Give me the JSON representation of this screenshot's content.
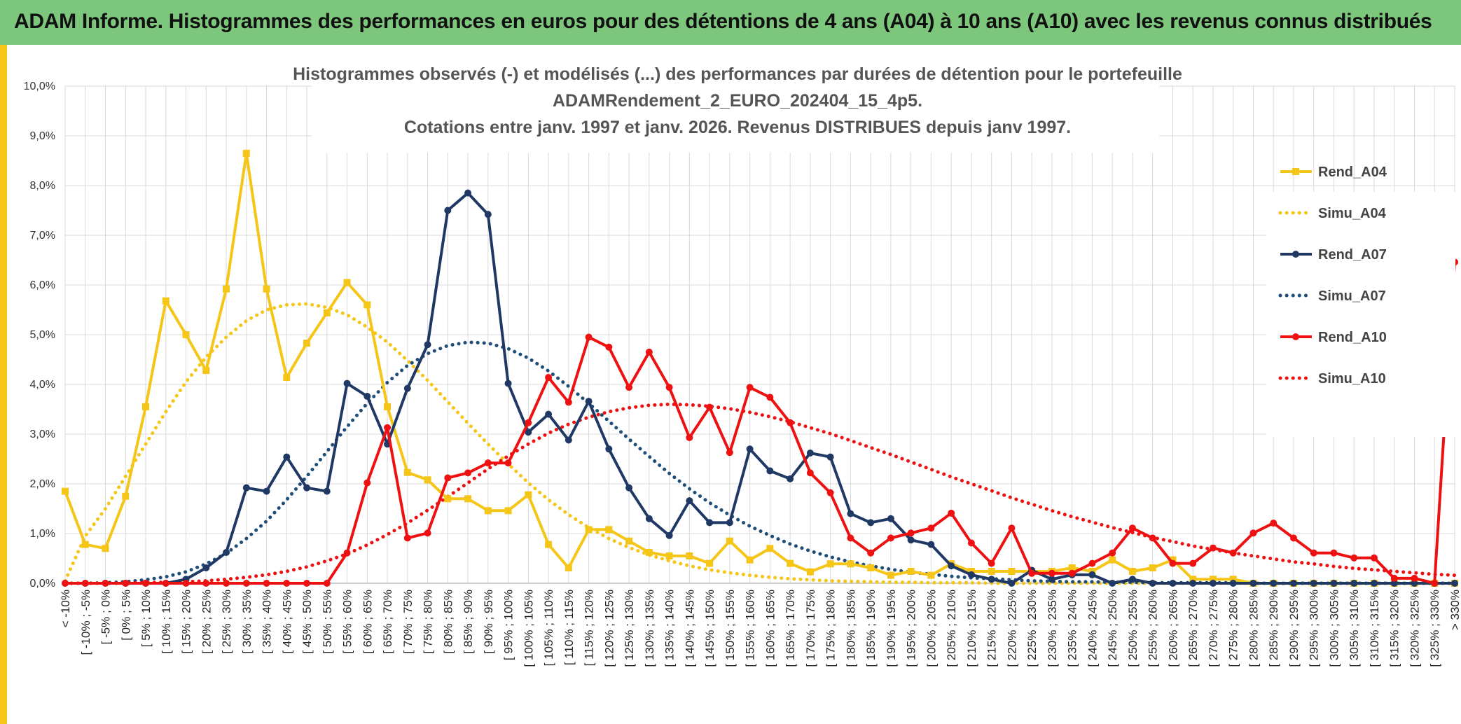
{
  "banner": {
    "title": "ADAM Informe. Histogrammes des performances en euros pour des détentions de 4 ans (A04) à 10 ans (A10) avec les revenus connus distribués",
    "color": "#7dc77d"
  },
  "chart_data": {
    "type": "line",
    "title": [
      "Histogrammes observés (-) et modélisés (...) des performances  par durées de détention pour le portefeuille",
      "ADAMRendement_2_EURO_202404_15_4p5.",
      "Cotations entre janv. 1997 et janv. 2026. Revenus DISTRIBUES depuis janv 1997."
    ],
    "ylim": [
      0,
      10
    ],
    "yticks": [
      "0,0%",
      "1,0%",
      "2,0%",
      "3,0%",
      "4,0%",
      "5,0%",
      "6,0%",
      "7,0%",
      "8,0%",
      "9,0%",
      "10,0%"
    ],
    "grid": true,
    "legend_position": "right",
    "categories": [
      "< -10%",
      "[ -10% ; -5%",
      "[ -5% ; 0%",
      "[ 0% ; 5%",
      "[ 5% ; 10%",
      "[ 10% ; 15%",
      "[ 15% ; 20%",
      "[ 20% ; 25%",
      "[ 25% ; 30%",
      "[ 30% ; 35%",
      "[ 35% ; 40%",
      "[ 40% ; 45%",
      "[ 45% ; 50%",
      "[ 50% ; 55%",
      "[ 55% ; 60%",
      "[ 60% ; 65%",
      "[ 65% ; 70%",
      "[ 70% ; 75%",
      "[ 75% ; 80%",
      "[ 80% ; 85%",
      "[ 85% ; 90%",
      "[ 90% ; 95%",
      "[ 95% ; 100%",
      "[ 100% ; 105%",
      "[ 105% ; 110%",
      "[ 110% ; 115%",
      "[ 115% ; 120%",
      "[ 120% ; 125%",
      "[ 125% ; 130%",
      "[ 130% ; 135%",
      "[ 135% ; 140%",
      "[ 140% ; 145%",
      "[ 145% ; 150%",
      "[ 150% ; 155%",
      "[ 155% ; 160%",
      "[ 160% ; 165%",
      "[ 165% ; 170%",
      "[ 170% ; 175%",
      "[ 175% ; 180%",
      "[ 180% ; 185%",
      "[ 185% ; 190%",
      "[ 190% ; 195%",
      "[ 195% ; 200%",
      "[ 200% ; 205%",
      "[ 205% ; 210%",
      "[ 210% ; 215%",
      "[ 215% ; 220%",
      "[ 220% ; 225%",
      "[ 225% ; 230%",
      "[ 230% ; 235%",
      "[ 235% ; 240%",
      "[ 240% ; 245%",
      "[ 245% ; 250%",
      "[ 250% ; 255%",
      "[ 255% ; 260%",
      "[ 260% ; 265%",
      "[ 265% ; 270%",
      "[ 270% ; 275%",
      "[ 275% ; 280%",
      "[ 280% ; 285%",
      "[ 285% ; 290%",
      "[ 290% ; 295%",
      "[ 295% ; 300%",
      "[ 300% ; 305%",
      "[ 305% ; 310%",
      "[ 310% ; 315%",
      "[ 315% ; 320%",
      "[ 320% ; 325%",
      "[ 325% ; 330%",
      "> 330%"
    ],
    "series": [
      {
        "name": "Rend_A04",
        "color": "#f5c518",
        "style": "solid",
        "marker": "square",
        "values": [
          1.85,
          0.78,
          0.7,
          1.75,
          3.55,
          5.68,
          5.0,
          4.28,
          5.92,
          8.65,
          5.92,
          4.14,
          4.83,
          5.44,
          6.05,
          5.6,
          3.55,
          2.23,
          2.08,
          1.7,
          1.7,
          1.46,
          1.46,
          1.78,
          0.78,
          0.31,
          1.08,
          1.08,
          0.85,
          0.62,
          0.55,
          0.55,
          0.4,
          0.85,
          0.47,
          0.7,
          0.4,
          0.23,
          0.39,
          0.39,
          0.31,
          0.16,
          0.24,
          0.16,
          0.39,
          0.24,
          0.24,
          0.24,
          0.24,
          0.24,
          0.31,
          0.24,
          0.47,
          0.24,
          0.31,
          0.47,
          0.08,
          0.08,
          0.08,
          0.0,
          0.0,
          0.0,
          0.0,
          0.0,
          0.0,
          0.0,
          0.0,
          0.0,
          0.0,
          0.0
        ]
      },
      {
        "name": "Simu_A04",
        "color": "#f5c518",
        "style": "dotted",
        "marker": "none",
        "values": [
          0.05,
          0.95,
          1.5,
          2.15,
          2.8,
          3.45,
          4.05,
          4.55,
          4.95,
          5.28,
          5.5,
          5.6,
          5.62,
          5.55,
          5.4,
          5.15,
          4.85,
          4.48,
          4.08,
          3.65,
          3.22,
          2.8,
          2.4,
          2.02,
          1.68,
          1.38,
          1.12,
          0.9,
          0.72,
          0.57,
          0.45,
          0.35,
          0.27,
          0.21,
          0.16,
          0.12,
          0.09,
          0.07,
          0.05,
          0.04,
          0.03,
          0.02,
          0.02,
          0.01,
          0.01,
          0.01,
          0.0,
          0.0,
          0.0,
          0.0,
          0.0,
          0.0,
          0.0,
          0.0,
          0.0,
          0.0,
          0.0,
          0.0,
          0.0,
          0.0,
          0.0,
          0.0,
          0.0,
          0.0,
          0.0,
          0.0,
          0.0,
          0.0,
          0.0,
          0.0
        ]
      },
      {
        "name": "Rend_A07",
        "color": "#1f3864",
        "style": "solid",
        "marker": "circle",
        "values": [
          0.0,
          0.0,
          0.0,
          0.0,
          0.0,
          0.0,
          0.08,
          0.31,
          0.62,
          1.92,
          1.85,
          2.54,
          1.92,
          1.85,
          4.02,
          3.76,
          2.8,
          3.92,
          4.8,
          7.5,
          7.85,
          7.42,
          4.02,
          3.04,
          3.4,
          2.88,
          3.66,
          2.7,
          1.92,
          1.3,
          0.96,
          1.66,
          1.22,
          1.22,
          2.7,
          2.26,
          2.1,
          2.62,
          2.54,
          1.4,
          1.22,
          1.3,
          0.87,
          0.78,
          0.35,
          0.17,
          0.08,
          0.0,
          0.26,
          0.08,
          0.17,
          0.17,
          0.0,
          0.08,
          0.0,
          0.0,
          0.0,
          0.0,
          0.0,
          0.0,
          0.0,
          0.0,
          0.0,
          0.0,
          0.0,
          0.0,
          0.0,
          0.0,
          0.0,
          0.0
        ]
      },
      {
        "name": "Simu_A07",
        "color": "#1f4e79",
        "style": "dotted",
        "marker": "none",
        "values": [
          0.0,
          0.0,
          0.01,
          0.03,
          0.07,
          0.13,
          0.23,
          0.39,
          0.6,
          0.9,
          1.25,
          1.68,
          2.15,
          2.65,
          3.15,
          3.62,
          4.04,
          4.38,
          4.62,
          4.78,
          4.85,
          4.83,
          4.72,
          4.53,
          4.27,
          3.96,
          3.62,
          3.26,
          2.9,
          2.55,
          2.21,
          1.9,
          1.62,
          1.37,
          1.15,
          0.96,
          0.79,
          0.65,
          0.53,
          0.43,
          0.35,
          0.28,
          0.22,
          0.18,
          0.14,
          0.11,
          0.09,
          0.07,
          0.05,
          0.04,
          0.03,
          0.03,
          0.02,
          0.02,
          0.01,
          0.01,
          0.01,
          0.01,
          0.01,
          0.0,
          0.0,
          0.0,
          0.0,
          0.0,
          0.0,
          0.0,
          0.0,
          0.0,
          0.0,
          0.0
        ]
      },
      {
        "name": "Rend_A10",
        "color": "#ee1111",
        "style": "solid",
        "marker": "circle",
        "values": [
          0.0,
          0.0,
          0.0,
          0.0,
          0.0,
          0.0,
          0.0,
          0.0,
          0.0,
          0.0,
          0.0,
          0.0,
          0.0,
          0.0,
          0.61,
          2.02,
          3.13,
          0.91,
          1.01,
          2.12,
          2.22,
          2.42,
          2.42,
          3.23,
          4.14,
          3.64,
          4.95,
          4.75,
          3.94,
          4.65,
          3.94,
          2.93,
          3.54,
          2.63,
          3.94,
          3.74,
          3.23,
          2.22,
          1.82,
          0.91,
          0.61,
          0.91,
          1.01,
          1.11,
          1.41,
          0.81,
          0.4,
          1.11,
          0.2,
          0.2,
          0.2,
          0.4,
          0.61,
          1.11,
          0.91,
          0.4,
          0.4,
          0.71,
          0.61,
          1.01,
          1.21,
          0.91,
          0.61,
          0.61,
          0.51,
          0.51,
          0.1,
          0.1,
          0.0,
          6.46
        ]
      },
      {
        "name": "Simu_A10",
        "color": "#ee1111",
        "style": "dotted",
        "marker": "none",
        "values": [
          0.0,
          0.0,
          0.0,
          0.0,
          0.01,
          0.02,
          0.03,
          0.05,
          0.08,
          0.12,
          0.17,
          0.24,
          0.33,
          0.45,
          0.59,
          0.77,
          0.98,
          1.21,
          1.47,
          1.74,
          2.02,
          2.3,
          2.56,
          2.8,
          3.02,
          3.2,
          3.34,
          3.45,
          3.53,
          3.58,
          3.6,
          3.59,
          3.56,
          3.51,
          3.44,
          3.35,
          3.25,
          3.13,
          3.01,
          2.87,
          2.73,
          2.59,
          2.44,
          2.29,
          2.14,
          2.0,
          1.86,
          1.72,
          1.59,
          1.46,
          1.34,
          1.23,
          1.12,
          1.02,
          0.92,
          0.84,
          0.75,
          0.68,
          0.61,
          0.55,
          0.49,
          0.43,
          0.39,
          0.34,
          0.3,
          0.27,
          0.24,
          0.21,
          0.18,
          0.16
        ]
      }
    ]
  }
}
